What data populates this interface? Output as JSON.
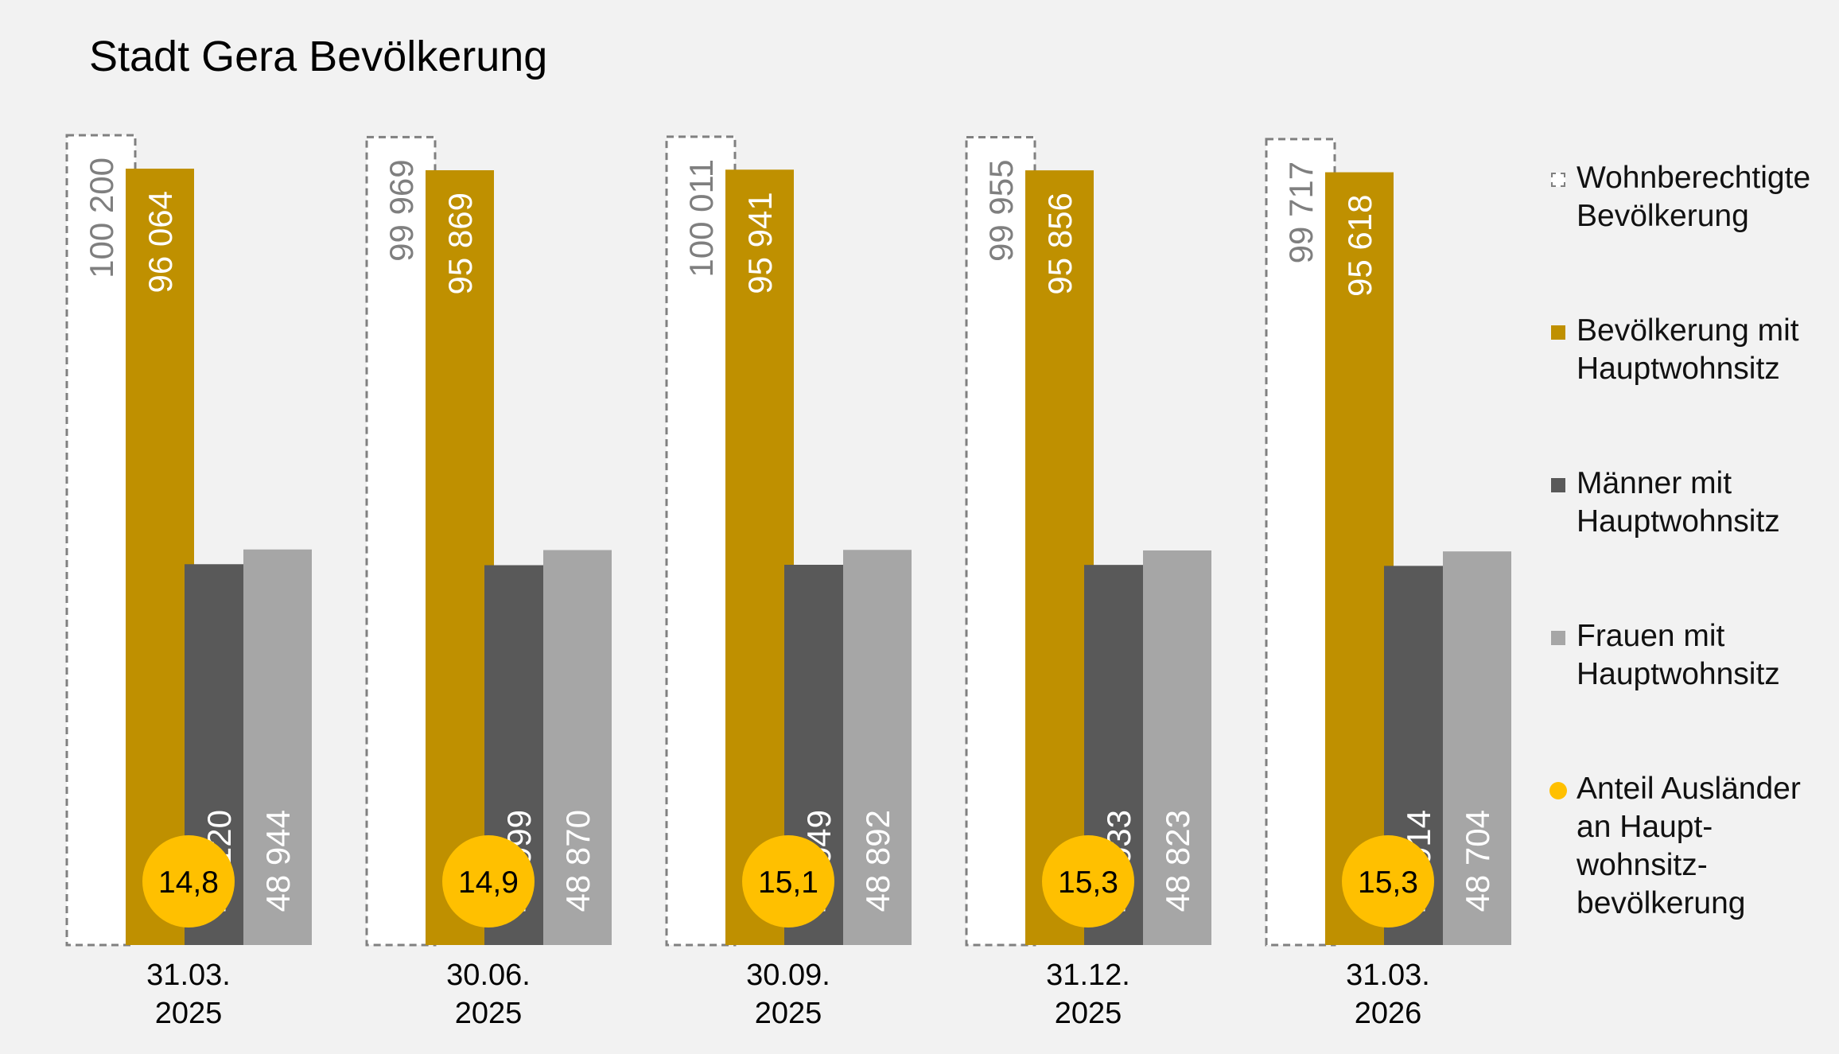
{
  "title": "Stadt Gera Bevölkerung",
  "colors": {
    "background": "#f2f2f2",
    "wohnberechtigt_fill": "#ffffff",
    "wohnberechtigt_border": "#808080",
    "hauptwohnsitz": "#bf9000",
    "maenner": "#595959",
    "frauen": "#a6a6a6",
    "auslaender": "#ffc000",
    "value_label_dark": "#7f7f7f",
    "value_label_light": "#ffffff"
  },
  "legend": [
    {
      "label": "Wohnberechtigte\nBevölkerung",
      "swatch": "dashed-white"
    },
    {
      "label": "Bevölkerung mit\nHauptwohnsitz",
      "swatch": "hauptwohnsitz"
    },
    {
      "label": "Männer mit\nHauptwohnsitz",
      "swatch": "maenner"
    },
    {
      "label": "Frauen mit\nHauptwohnsitz",
      "swatch": "frauen"
    },
    {
      "label": "Anteil Ausländer\nan Haupt-\nwohnsitz-\nbevölkerung",
      "swatch": "auslaender-dot"
    }
  ],
  "chart_data": {
    "type": "bar",
    "title": "Stadt Gera Bevölkerung",
    "categories": [
      [
        "31.03.",
        "2025"
      ],
      [
        "30.06.",
        "2025"
      ],
      [
        "30.09.",
        "2025"
      ],
      [
        "31.12.",
        "2025"
      ],
      [
        "31.03.",
        "2026"
      ]
    ],
    "series": [
      {
        "name": "Wohnberechtigte Bevölkerung",
        "values": [
          100200,
          99969,
          100011,
          99955,
          99717
        ],
        "labels": [
          "100 200",
          "99 969",
          "100 011",
          "99 955",
          "99 717"
        ]
      },
      {
        "name": "Bevölkerung mit Hauptwohnsitz",
        "values": [
          96064,
          95869,
          95941,
          95856,
          95618
        ],
        "labels": [
          "96 064",
          "95 869",
          "95 941",
          "95 856",
          "95 618"
        ]
      },
      {
        "name": "Männer mit Hauptwohnsitz",
        "values": [
          47120,
          46999,
          47049,
          47033,
          46914
        ],
        "labels": [
          "47 120",
          "46 999",
          "47 049",
          "47 033",
          "46 914"
        ]
      },
      {
        "name": "Frauen mit Hauptwohnsitz",
        "values": [
          48944,
          48870,
          48892,
          48823,
          48704
        ],
        "labels": [
          "48 944",
          "48 870",
          "48 892",
          "48 823",
          "48 704"
        ]
      }
    ],
    "overlay_series": {
      "name": "Anteil Ausländer an Hauptwohnsitzbevölkerung",
      "values": [
        14.8,
        14.9,
        15.1,
        15.3,
        15.3
      ],
      "labels": [
        "14,8",
        "14,9",
        "15,1",
        "15,3",
        "15,3"
      ]
    },
    "ylim": [
      0,
      100200
    ],
    "grid": false,
    "legend_position": "right"
  }
}
